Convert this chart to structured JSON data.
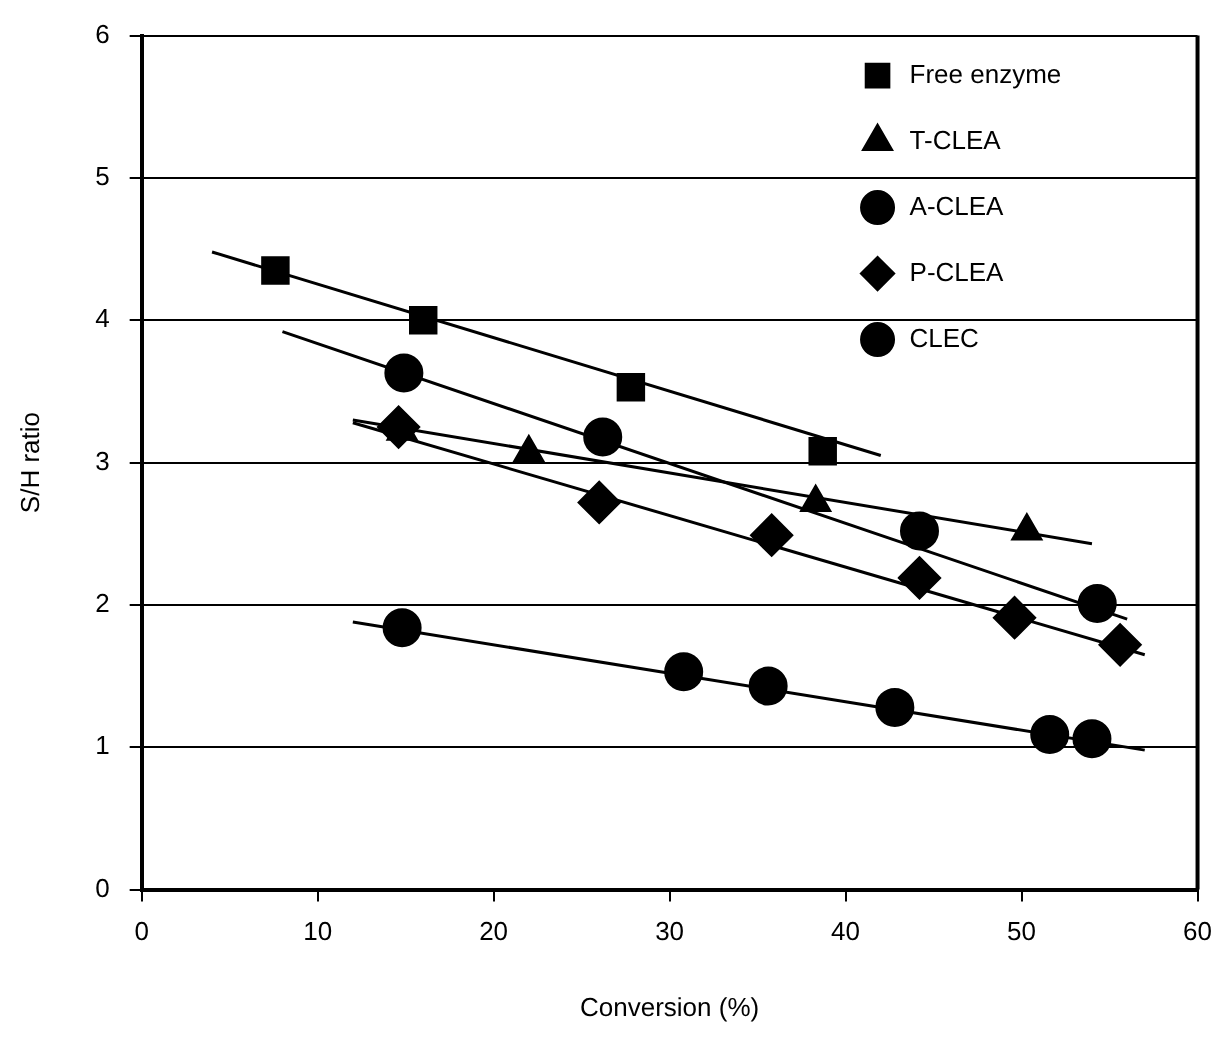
{
  "chart_data": {
    "type": "scatter",
    "xlabel": "Conversion (%)",
    "ylabel": "S/H ratio",
    "xlim": [
      0,
      60
    ],
    "xticks": [
      0,
      10,
      20,
      30,
      40,
      50,
      60
    ],
    "ylim": [
      0,
      6
    ],
    "yticks": [
      0,
      1,
      2,
      3,
      4,
      5,
      6
    ],
    "grid": "y",
    "legend": "top right",
    "series": [
      {
        "name": "Free enzyme",
        "color": "#000000",
        "marker": "square",
        "x": [
          7.6,
          16,
          27.8,
          38.7
        ],
        "values": [
          4.35,
          4.0,
          3.53,
          3.08
        ]
      },
      {
        "name": "T-CLEA",
        "color": "#000000",
        "marker": "triangle",
        "x": [
          14.8,
          22,
          38.3,
          50.3
        ],
        "values": [
          3.22,
          3.07,
          2.72,
          2.52
        ]
      },
      {
        "name": "A-CLEA",
        "color": "#000000",
        "marker": "circle",
        "x": [
          14.9,
          26.2,
          44.2,
          54.3
        ],
        "values": [
          3.63,
          3.18,
          2.52,
          2.01
        ]
      },
      {
        "name": "P-CLEA",
        "color": "#000000",
        "marker": "diamond",
        "x": [
          14.6,
          26,
          35.8,
          44.2,
          49.6,
          55.6
        ],
        "values": [
          3.25,
          2.72,
          2.49,
          2.19,
          1.91,
          1.72
        ]
      },
      {
        "name": "CLEC",
        "color": "#000000",
        "marker": "circle",
        "x": [
          14.8,
          30.8,
          35.6,
          42.8,
          51.6,
          54
        ],
        "values": [
          1.84,
          1.53,
          1.43,
          1.28,
          1.09,
          1.06
        ]
      },
      {
        "type": "line",
        "color": "#000000",
        "marker": "none",
        "line_style": "solid",
        "x": [
          4,
          42
        ],
        "values": [
          4.48,
          3.05
        ]
      },
      {
        "type": "line",
        "color": "#000000",
        "marker": "none",
        "line_style": "solid",
        "x": [
          12,
          54
        ],
        "values": [
          3.3,
          2.43
        ]
      },
      {
        "type": "line",
        "color": "#000000",
        "marker": "none",
        "line_style": "solid",
        "x": [
          8,
          56
        ],
        "values": [
          3.92,
          1.9
        ]
      },
      {
        "type": "line",
        "color": "#000000",
        "marker": "none",
        "line_style": "solid",
        "x": [
          12,
          57
        ],
        "values": [
          3.28,
          1.65
        ]
      },
      {
        "type": "line",
        "color": "#000000",
        "marker": "none",
        "line_style": "solid",
        "x": [
          12,
          57
        ],
        "values": [
          1.88,
          0.98
        ]
      }
    ]
  }
}
